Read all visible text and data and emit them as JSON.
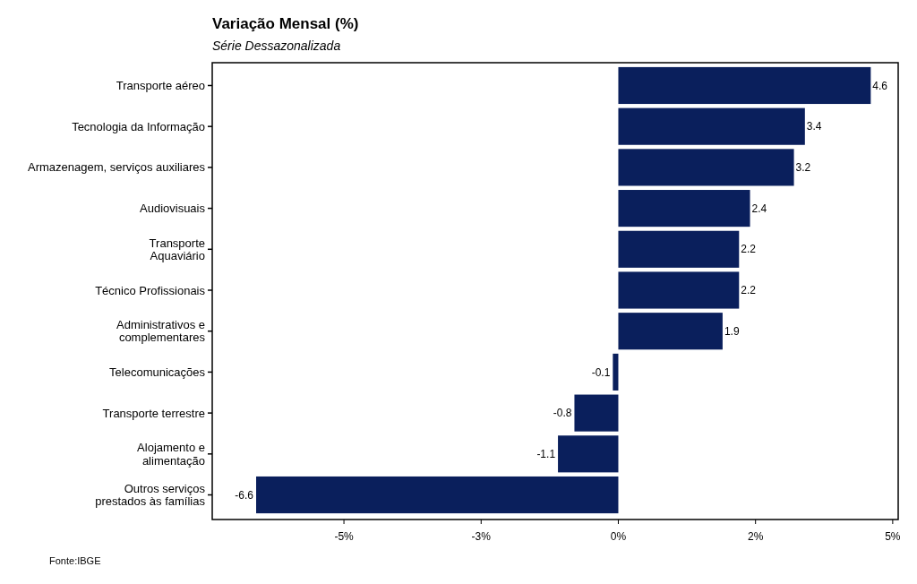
{
  "chart_data": {
    "type": "bar",
    "orientation": "horizontal",
    "title": "Variação Mensal (%)",
    "subtitle": "Série Dessazonalizada",
    "categories": [
      "Transporte aéreo",
      "Tecnologia da Informação",
      "Armazenagem, serviços auxiliares",
      "Audiovisuais",
      "Transporte\nAquaviário",
      "Técnico Profissionais",
      "Administrativos e\ncomplementares",
      "Telecomunicações",
      "Transporte terrestre",
      "Alojamento e\nalimentação",
      "Outros serviços\nprestados às famílias"
    ],
    "values": [
      4.6,
      3.4,
      3.2,
      2.4,
      2.2,
      2.2,
      1.9,
      -0.1,
      -0.8,
      -1.1,
      -6.6
    ],
    "color": "#0a1f5c",
    "xlim": [
      -7.4,
      5.1
    ],
    "xticks": [
      {
        "value": -5,
        "label": "-5%"
      },
      {
        "value": -2.5,
        "label": "-3%"
      },
      {
        "value": 0,
        "label": "0%"
      },
      {
        "value": 2.5,
        "label": "2%"
      },
      {
        "value": 5,
        "label": "5%"
      }
    ],
    "grid": false,
    "data_labels": true,
    "annotations": [
      "Fonte:IBGE"
    ]
  }
}
